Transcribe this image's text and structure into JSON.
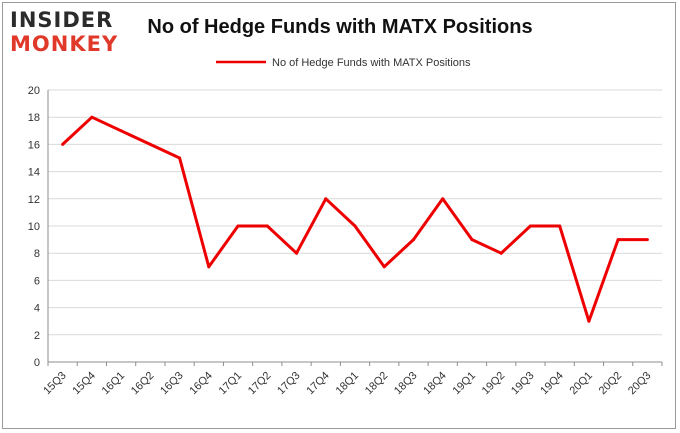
{
  "logo": {
    "line1": "INSIDER",
    "line2": "MONKEY"
  },
  "colors": {
    "series": "#ee0000",
    "grid": "#d9d9d9",
    "axis": "#8c8c8c",
    "logo_accent": "#e0392a"
  },
  "chart_data": {
    "type": "line",
    "title": "No of Hedge Funds with MATX Positions",
    "xlabel": "",
    "ylabel": "",
    "ylim": [
      0,
      20
    ],
    "yticks": [
      0,
      2,
      4,
      6,
      8,
      10,
      12,
      14,
      16,
      18,
      20
    ],
    "grid": true,
    "legend_position": "top-center",
    "categories": [
      "15Q3",
      "15Q4",
      "16Q1",
      "16Q2",
      "16Q3",
      "16Q4",
      "17Q1",
      "17Q2",
      "17Q3",
      "17Q4",
      "18Q1",
      "18Q2",
      "18Q3",
      "18Q4",
      "19Q1",
      "19Q2",
      "19Q3",
      "19Q4",
      "20Q1",
      "20Q2",
      "20Q3"
    ],
    "series": [
      {
        "name": "No of Hedge Funds with MATX Positions",
        "values": [
          16,
          18,
          17,
          16,
          15,
          7,
          10,
          10,
          8,
          12,
          10,
          7,
          9,
          12,
          9,
          8,
          10,
          10,
          3,
          9,
          9
        ]
      }
    ]
  }
}
